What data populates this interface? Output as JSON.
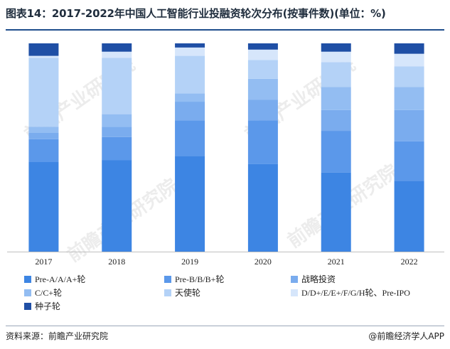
{
  "title": "图表14：2017-2022年中国人工智能行业投融资轮次分布(按事件数)(单位：%)",
  "footer": {
    "source": "资料来源：前瞻产业研究院",
    "brand": "@前瞻经济学人APP"
  },
  "watermark": "前瞻产业研究院",
  "chart_data": {
    "type": "bar",
    "stacked": true,
    "categories": [
      "2017",
      "2018",
      "2019",
      "2020",
      "2021",
      "2022"
    ],
    "ylim": [
      0,
      100
    ],
    "grid": false,
    "legend_position": "bottom",
    "series": [
      {
        "name": "Pre-A/A/A+轮",
        "color": "#3d85e3",
        "values": [
          43,
          44,
          46,
          42,
          38,
          34
        ]
      },
      {
        "name": "Pre-B/B/B+轮",
        "color": "#5b98ea",
        "values": [
          11,
          11,
          17,
          21,
          20,
          19
        ]
      },
      {
        "name": "战略投资",
        "color": "#7aacee",
        "values": [
          3,
          5,
          9,
          10,
          10,
          15
        ]
      },
      {
        "name": "C/C+轮",
        "color": "#93bdf2",
        "values": [
          3,
          6,
          4,
          10,
          11,
          11
        ]
      },
      {
        "name": "天使轮",
        "color": "#b4d2f7",
        "values": [
          33,
          27,
          18,
          9,
          12,
          10
        ]
      },
      {
        "name": "D/D+/E/E+/F/G/H轮、Pre-IPO",
        "color": "#d6e6fb",
        "values": [
          1,
          3,
          4,
          5,
          5,
          6
        ]
      },
      {
        "name": "种子轮",
        "color": "#1f4fa5",
        "values": [
          6,
          4,
          2,
          3,
          4,
          5
        ]
      }
    ]
  }
}
